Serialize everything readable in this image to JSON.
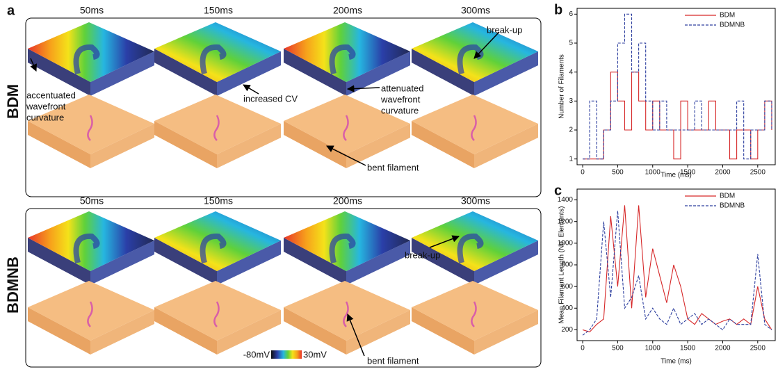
{
  "panel_a": {
    "letter": "a",
    "rows": [
      {
        "label": "BDM",
        "times": [
          "50ms",
          "150ms",
          "200ms",
          "300ms"
        ]
      },
      {
        "label": "BDMNB",
        "times": [
          "50ms",
          "150ms",
          "200ms",
          "300ms"
        ]
      }
    ],
    "annotations": [
      [
        "accentuated",
        "wavefront",
        "curvature"
      ],
      [
        "increased CV"
      ],
      [
        "attenuated",
        "wavefront",
        "curvature"
      ],
      [
        "break-up"
      ],
      [
        "bent filament"
      ],
      [
        "break-up"
      ],
      [
        "bent filament"
      ]
    ],
    "colorbar": {
      "min_label": "-80mV",
      "max_label": "30mV"
    }
  },
  "chart_data": [
    {
      "type": "line",
      "panel": "b",
      "step": true,
      "x_label": "Time (ms)",
      "y_label": "Number of Filaments",
      "x": [
        0,
        100,
        200,
        300,
        400,
        500,
        600,
        700,
        800,
        900,
        1000,
        1100,
        1200,
        1300,
        1400,
        1500,
        1600,
        1700,
        1800,
        1900,
        2000,
        2100,
        2200,
        2300,
        2400,
        2500,
        2600,
        2700
      ],
      "series": [
        {
          "name": "BDM",
          "color": "#d62728",
          "linestyle": "solid",
          "values": [
            1,
            1,
            1,
            2,
            4,
            3,
            2,
            4,
            3,
            2,
            3,
            2,
            2,
            1,
            3,
            2,
            2,
            2,
            3,
            2,
            2,
            1,
            2,
            2,
            1,
            2,
            3,
            2
          ]
        },
        {
          "name": "BDMNB",
          "color": "#2c3e9e",
          "linestyle": "dashed",
          "values": [
            1,
            3,
            1,
            2,
            3,
            5,
            6,
            4,
            5,
            3,
            2,
            3,
            2,
            2,
            2,
            2,
            3,
            2,
            2,
            2,
            2,
            2,
            3,
            1,
            2,
            2,
            3,
            2
          ]
        }
      ],
      "xlim": [
        -80,
        2750
      ],
      "ylim": [
        0.8,
        6.2
      ],
      "xticks": [
        0,
        500,
        1000,
        1500,
        2000,
        2500
      ],
      "yticks": [
        1,
        2,
        3,
        4,
        5,
        6
      ]
    },
    {
      "type": "line",
      "panel": "c",
      "step": false,
      "x_label": "Time (ms)",
      "y_label": "Mean Filament Length (No. Elements)",
      "x": [
        0,
        100,
        200,
        300,
        400,
        500,
        600,
        700,
        800,
        900,
        1000,
        1100,
        1200,
        1300,
        1400,
        1500,
        1600,
        1700,
        1800,
        1900,
        2000,
        2100,
        2200,
        2300,
        2400,
        2500,
        2600,
        2700
      ],
      "series": [
        {
          "name": "BDM",
          "color": "#d62728",
          "linestyle": "solid",
          "values": [
            200,
            180,
            250,
            300,
            1250,
            600,
            1350,
            400,
            1350,
            500,
            950,
            700,
            450,
            800,
            600,
            300,
            250,
            350,
            300,
            250,
            280,
            300,
            250,
            300,
            250,
            600,
            300,
            200
          ]
        },
        {
          "name": "BDMNB",
          "color": "#2c3e9e",
          "linestyle": "dashed",
          "values": [
            150,
            200,
            300,
            1200,
            500,
            1300,
            400,
            500,
            700,
            300,
            400,
            300,
            250,
            400,
            250,
            300,
            350,
            250,
            300,
            250,
            200,
            300,
            250,
            250,
            250,
            900,
            250,
            200
          ]
        }
      ],
      "xlim": [
        -80,
        2750
      ],
      "ylim": [
        100,
        1500
      ],
      "xticks": [
        0,
        500,
        1000,
        1500,
        2000,
        2500
      ],
      "yticks": [
        200,
        400,
        600,
        800,
        1000,
        1200,
        1400
      ]
    }
  ]
}
